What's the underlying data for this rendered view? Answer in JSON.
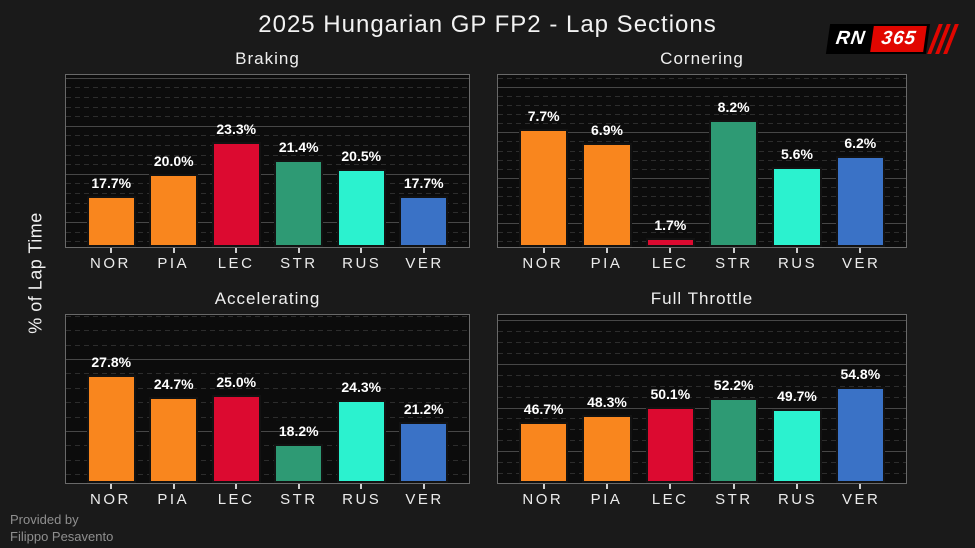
{
  "title": "2025 Hungarian GP FP2 - Lap Sections",
  "ylabel": "% of Lap Time",
  "credit": {
    "line1": "Provided by",
    "line2": "Filippo Pesavento"
  },
  "logo": {
    "rn": "RN",
    "num": "365"
  },
  "colors": {
    "NOR": "#f9861e",
    "PIA": "#f9861e",
    "LEC": "#dc0a30",
    "STR": "#2e9a74",
    "RUS": "#2bf2cf",
    "VER": "#3a72c6",
    "logo_red": "#e10600"
  },
  "chart_data": [
    {
      "type": "bar",
      "title": "Braking",
      "categories": [
        "NOR",
        "PIA",
        "LEC",
        "STR",
        "RUS",
        "VER"
      ],
      "values": [
        17.7,
        20.0,
        23.3,
        21.4,
        20.5,
        17.7
      ],
      "labels": [
        "17.7%",
        "20.0%",
        "23.3%",
        "21.4%",
        "20.5%",
        "17.7%"
      ],
      "ylim": [
        12.39,
        30.29
      ],
      "grid": {
        "major_step": 5,
        "minor_step": 1
      },
      "legend": "none",
      "gridlines": "major solid, minor dashed"
    },
    {
      "type": "bar",
      "title": "Cornering",
      "categories": [
        "NOR",
        "PIA",
        "LEC",
        "STR",
        "RUS",
        "VER"
      ],
      "values": [
        7.7,
        6.9,
        1.7,
        8.2,
        5.6,
        6.2
      ],
      "labels": [
        "7.7%",
        "6.9%",
        "1.7%",
        "8.2%",
        "5.6%",
        "6.2%"
      ],
      "ylim": [
        1.19,
        10.66
      ],
      "grid": {
        "major_step": 2.5,
        "minor_step": 0.5
      },
      "legend": "none",
      "gridlines": "major solid, minor dashed"
    },
    {
      "type": "bar",
      "title": "Accelerating",
      "categories": [
        "NOR",
        "PIA",
        "LEC",
        "STR",
        "RUS",
        "VER"
      ],
      "values": [
        27.8,
        24.7,
        25.0,
        18.2,
        24.3,
        21.2
      ],
      "labels": [
        "27.8%",
        "24.7%",
        "25.0%",
        "18.2%",
        "24.3%",
        "21.2%"
      ],
      "ylim": [
        12.74,
        36.14
      ],
      "grid": {
        "major_step": 10,
        "minor_step": 2
      },
      "legend": "none",
      "gridlines": "major solid, minor dashed"
    },
    {
      "type": "bar",
      "title": "Full Throttle",
      "categories": [
        "NOR",
        "PIA",
        "LEC",
        "STR",
        "RUS",
        "VER"
      ],
      "values": [
        46.7,
        48.3,
        50.1,
        52.2,
        49.7,
        54.8
      ],
      "labels": [
        "46.7%",
        "48.3%",
        "50.1%",
        "52.2%",
        "49.7%",
        "54.8%"
      ],
      "ylim": [
        32.69,
        71.24
      ],
      "grid": {
        "major_step": 10,
        "minor_step": 2.5
      },
      "legend": "none",
      "gridlines": "major solid, minor dashed"
    }
  ]
}
